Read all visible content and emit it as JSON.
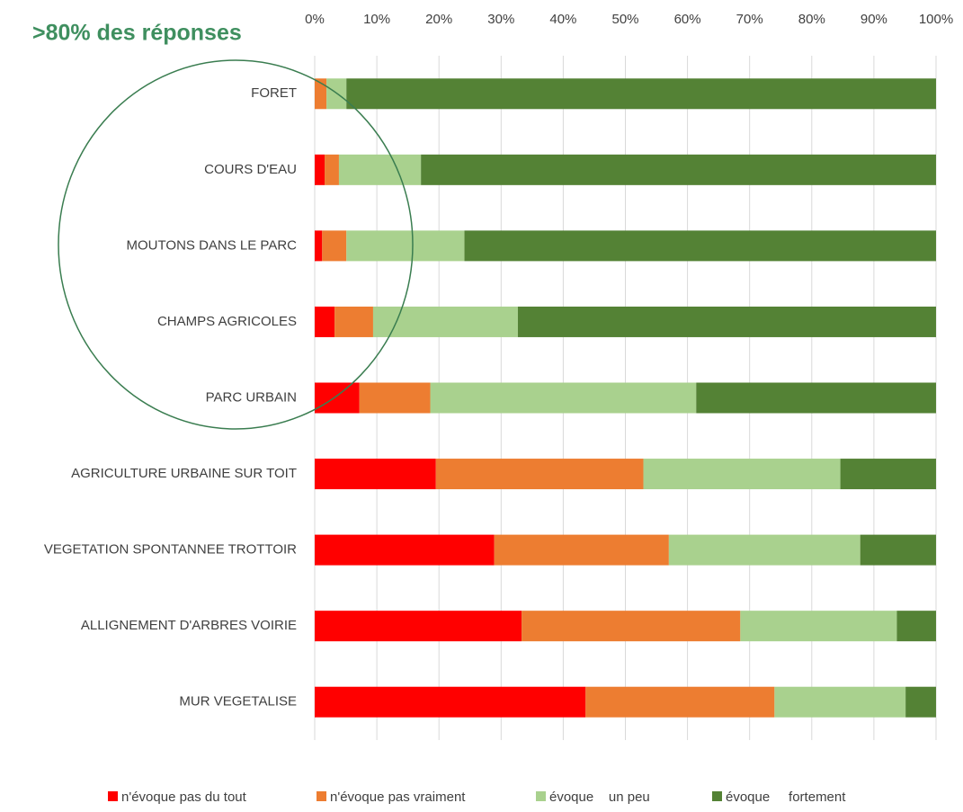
{
  "chart_data": {
    "type": "stacked_bar_horizontal",
    "annotation": ">80% des réponses",
    "categories": [
      "FORET",
      "COURS D'EAU",
      "MOUTONS DANS LE PARC",
      "CHAMPS AGRICOLES",
      "PARC URBAIN",
      "AGRICULTURE URBAINE SUR TOIT",
      "VEGETATION SPONTANNEE TROTTOIR",
      "ALLIGNEMENT D'ARBRES VOIRIE",
      "MUR VEGETALISE"
    ],
    "series": [
      {
        "name": "n'évoque pas du tout",
        "color": "#ff0000",
        "values": [
          0,
          1.6,
          1.2,
          3.2,
          7.2,
          19.5,
          28.9,
          33.3,
          43.6
        ]
      },
      {
        "name": "n'évoque pas vraiment",
        "color": "#ed7d31",
        "values": [
          1.9,
          2.3,
          3.9,
          6.2,
          11.4,
          33.4,
          28.1,
          35.2,
          30.4
        ]
      },
      {
        "name": "évoque    un peu",
        "color": "#a9d18e",
        "values": [
          3.2,
          13.2,
          19.0,
          23.3,
          42.8,
          31.7,
          30.8,
          25.2,
          21.1
        ]
      },
      {
        "name": "évoque     fortement",
        "color": "#548235",
        "values": [
          94.9,
          82.9,
          75.9,
          67.3,
          38.6,
          15.4,
          12.2,
          6.3,
          4.9
        ]
      }
    ],
    "xlim": [
      0,
      100
    ],
    "xticks": [
      {
        "value": 0,
        "label": "0%"
      },
      {
        "value": 10,
        "label": "10%"
      },
      {
        "value": 20,
        "label": "20%"
      },
      {
        "value": 30,
        "label": "30%"
      },
      {
        "value": 40,
        "label": "40%"
      },
      {
        "value": 50,
        "label": "50%"
      },
      {
        "value": 60,
        "label": "60%"
      },
      {
        "value": 70,
        "label": "70%"
      },
      {
        "value": 80,
        "label": "80%"
      },
      {
        "value": 90,
        "label": "90%"
      },
      {
        "value": 100,
        "label": "100%"
      }
    ],
    "grid": true
  }
}
